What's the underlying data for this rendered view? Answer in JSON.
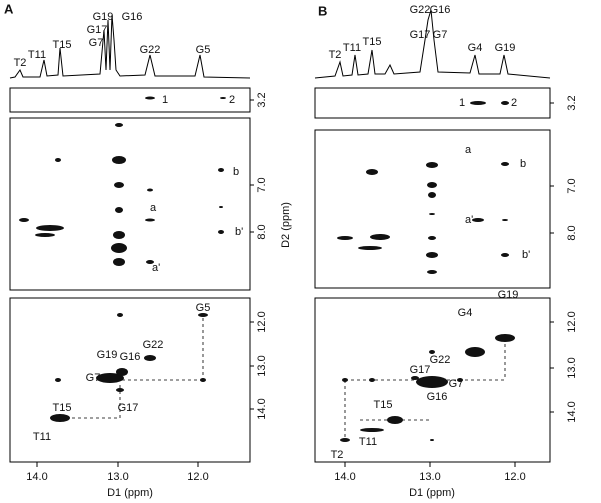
{
  "panels": [
    {
      "label": "A",
      "spectrum_labels": [
        "T2",
        "T11",
        "T15",
        "G7",
        "G17",
        "G19",
        "G16",
        "G22",
        "G5"
      ],
      "strip_labels": [
        "1",
        "2"
      ],
      "region_labels": [
        "a",
        "b",
        "b'",
        "a'"
      ],
      "imino_labels": [
        "G5",
        "G22",
        "G19",
        "G16",
        "G7",
        "G17",
        "T15",
        "T11"
      ],
      "d2_ticks": [
        "3.2",
        "7.0",
        "8.0",
        "12.0",
        "13.0",
        "14.0"
      ],
      "d1_ticks": [
        "14.0",
        "13.0",
        "12.0"
      ],
      "x_axis_label": "D1 (ppm)",
      "y_axis_label": "D2 (ppm)"
    },
    {
      "label": "B",
      "spectrum_labels": [
        "T2",
        "T11",
        "T15",
        "G17",
        "G7",
        "G22",
        "G16",
        "G4",
        "G19"
      ],
      "strip_labels": [
        "1",
        "2"
      ],
      "region_labels": [
        "a",
        "b",
        "a'",
        "b'"
      ],
      "imino_labels": [
        "G19",
        "G4",
        "G17",
        "G22",
        "G7",
        "G16",
        "T15",
        "T11",
        "T2"
      ],
      "d2_ticks": [
        "3.2",
        "7.0",
        "8.0",
        "12.0",
        "13.0",
        "14.0"
      ],
      "d1_ticks": [
        "14.0",
        "13.0",
        "12.0"
      ],
      "x_axis_label": "D1 (ppm)"
    }
  ]
}
